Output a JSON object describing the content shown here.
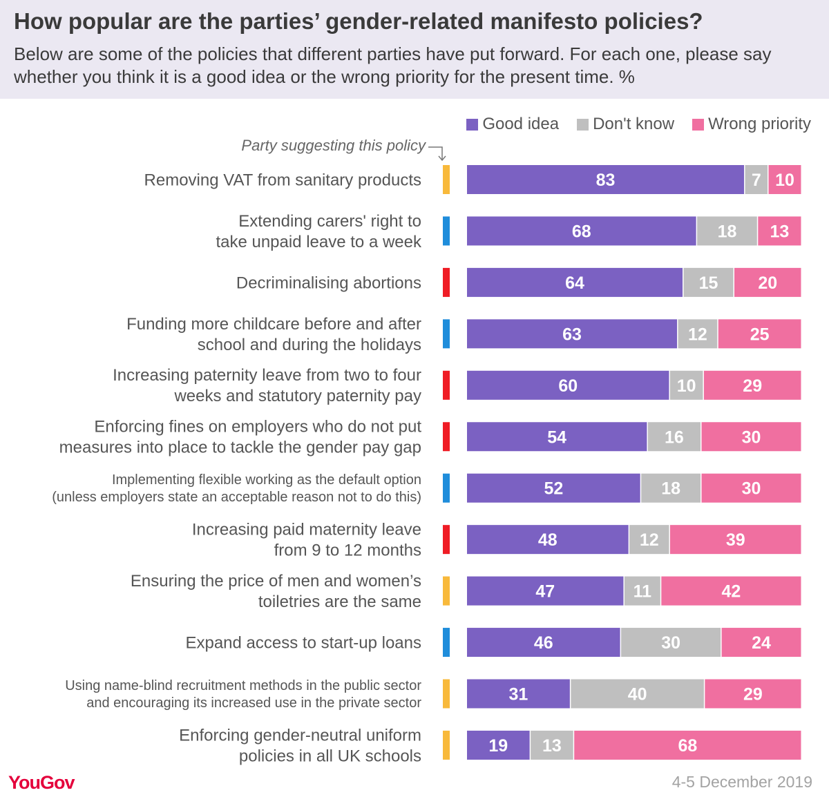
{
  "title": "How popular are the parties’ gender-related manifesto policies?",
  "subtitle": "Below are some of the policies that different parties have put forward. For each one, please say whether you think it is a good idea or the wrong priority for the present time. %",
  "party_note": "Party suggesting this policy",
  "source": "YouGov",
  "date": "4-5 December 2019",
  "colors": {
    "good": "#7b61c2",
    "dontknow": "#bfbfbf",
    "wrong": "#f06fa0",
    "party_yellow": "#f8b93b",
    "party_blue": "#1f8ddb",
    "party_red": "#ef1c25",
    "header_bg": "#ebe8f2"
  },
  "chart_data": {
    "type": "bar",
    "orientation": "horizontal",
    "stacked": true,
    "legend_position": "top-right",
    "xlim": [
      0,
      100
    ],
    "categories": [
      [
        "Removing VAT from sanitary products"
      ],
      [
        "Extending carers' right to",
        "take unpaid leave to a week"
      ],
      [
        "Decriminalising abortions"
      ],
      [
        "Funding more childcare before and after",
        "school and during the holidays"
      ],
      [
        "Increasing paternity leave from two to four",
        "weeks and statutory paternity pay"
      ],
      [
        "Enforcing fines on employers who do not put",
        "measures into place to tackle the gender pay gap"
      ],
      [
        "Implementing flexible working as the default option",
        "(unless employers state an acceptable reason not to do this)"
      ],
      [
        "Increasing paid maternity leave",
        "from 9 to 12 months"
      ],
      [
        "Ensuring the price of men and women’s",
        "toiletries are the same"
      ],
      [
        "Expand access to start-up loans"
      ],
      [
        "Using name-blind recruitment methods in the public sector",
        "and encouraging its increased use in the private sector"
      ],
      [
        "Enforcing gender-neutral uniform",
        "policies in all UK schools"
      ]
    ],
    "party_colors": [
      "yellow",
      "blue",
      "red",
      "blue",
      "red",
      "red",
      "blue",
      "red",
      "yellow",
      "blue",
      "yellow",
      "yellow"
    ],
    "series": [
      {
        "name": "Good idea",
        "key": "good",
        "values": [
          83,
          68,
          64,
          63,
          60,
          54,
          52,
          48,
          47,
          46,
          31,
          19
        ]
      },
      {
        "name": "Don't know",
        "key": "dontknow",
        "values": [
          7,
          18,
          15,
          12,
          10,
          16,
          18,
          12,
          11,
          30,
          40,
          13
        ]
      },
      {
        "name": "Wrong priority",
        "key": "wrong",
        "values": [
          10,
          13,
          20,
          25,
          29,
          30,
          30,
          39,
          42,
          24,
          29,
          68
        ]
      }
    ]
  }
}
